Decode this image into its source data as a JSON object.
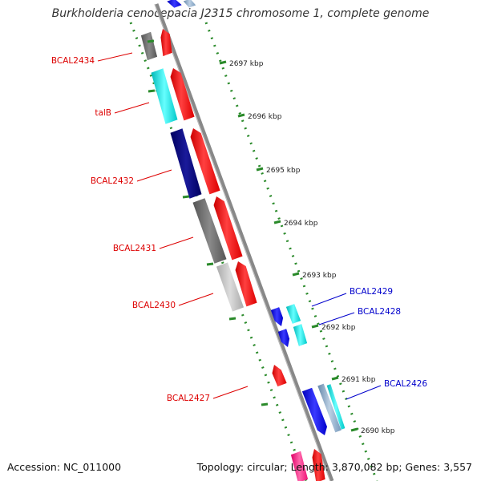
{
  "map": {
    "title": "Burkholderia cenocepacia J2315 chromosome 1, complete genome",
    "accession": "Accession: NC_011000",
    "stats": "Topology: circular; Length: 3,870,082 bp; Genes: 3,557"
  },
  "scale_ticks": [
    {
      "label": "2697 kbp"
    },
    {
      "label": "2696 kbp"
    },
    {
      "label": "2695 kbp"
    },
    {
      "label": "2694 kbp"
    },
    {
      "label": "2693 kbp"
    },
    {
      "label": "2692 kbp"
    },
    {
      "label": "2691 kbp"
    },
    {
      "label": "2690 kbp"
    }
  ],
  "gene_labels": [
    {
      "name": "BCAL2434",
      "color": "#dd0000"
    },
    {
      "name": "talB",
      "color": "#dd0000"
    },
    {
      "name": "BCAL2432",
      "color": "#dd0000"
    },
    {
      "name": "BCAL2431",
      "color": "#dd0000"
    },
    {
      "name": "BCAL2430",
      "color": "#dd0000"
    },
    {
      "name": "BCAL2427",
      "color": "#dd0000"
    },
    {
      "name": "BCAL2429",
      "color": "#0000cc"
    },
    {
      "name": "BCAL2428",
      "color": "#0000cc"
    },
    {
      "name": "BCAL2426",
      "color": "#0000cc"
    }
  ],
  "colors": {
    "backbone": "#888888",
    "tick": "#2a8a2a",
    "forward_cds": "#ff0000",
    "reverse_cds": "#0000ee",
    "gray_feature": "#666666",
    "navy_feature": "#000080",
    "cyan_feature": "#00dddd",
    "magenta_feature": "#ff2288"
  }
}
